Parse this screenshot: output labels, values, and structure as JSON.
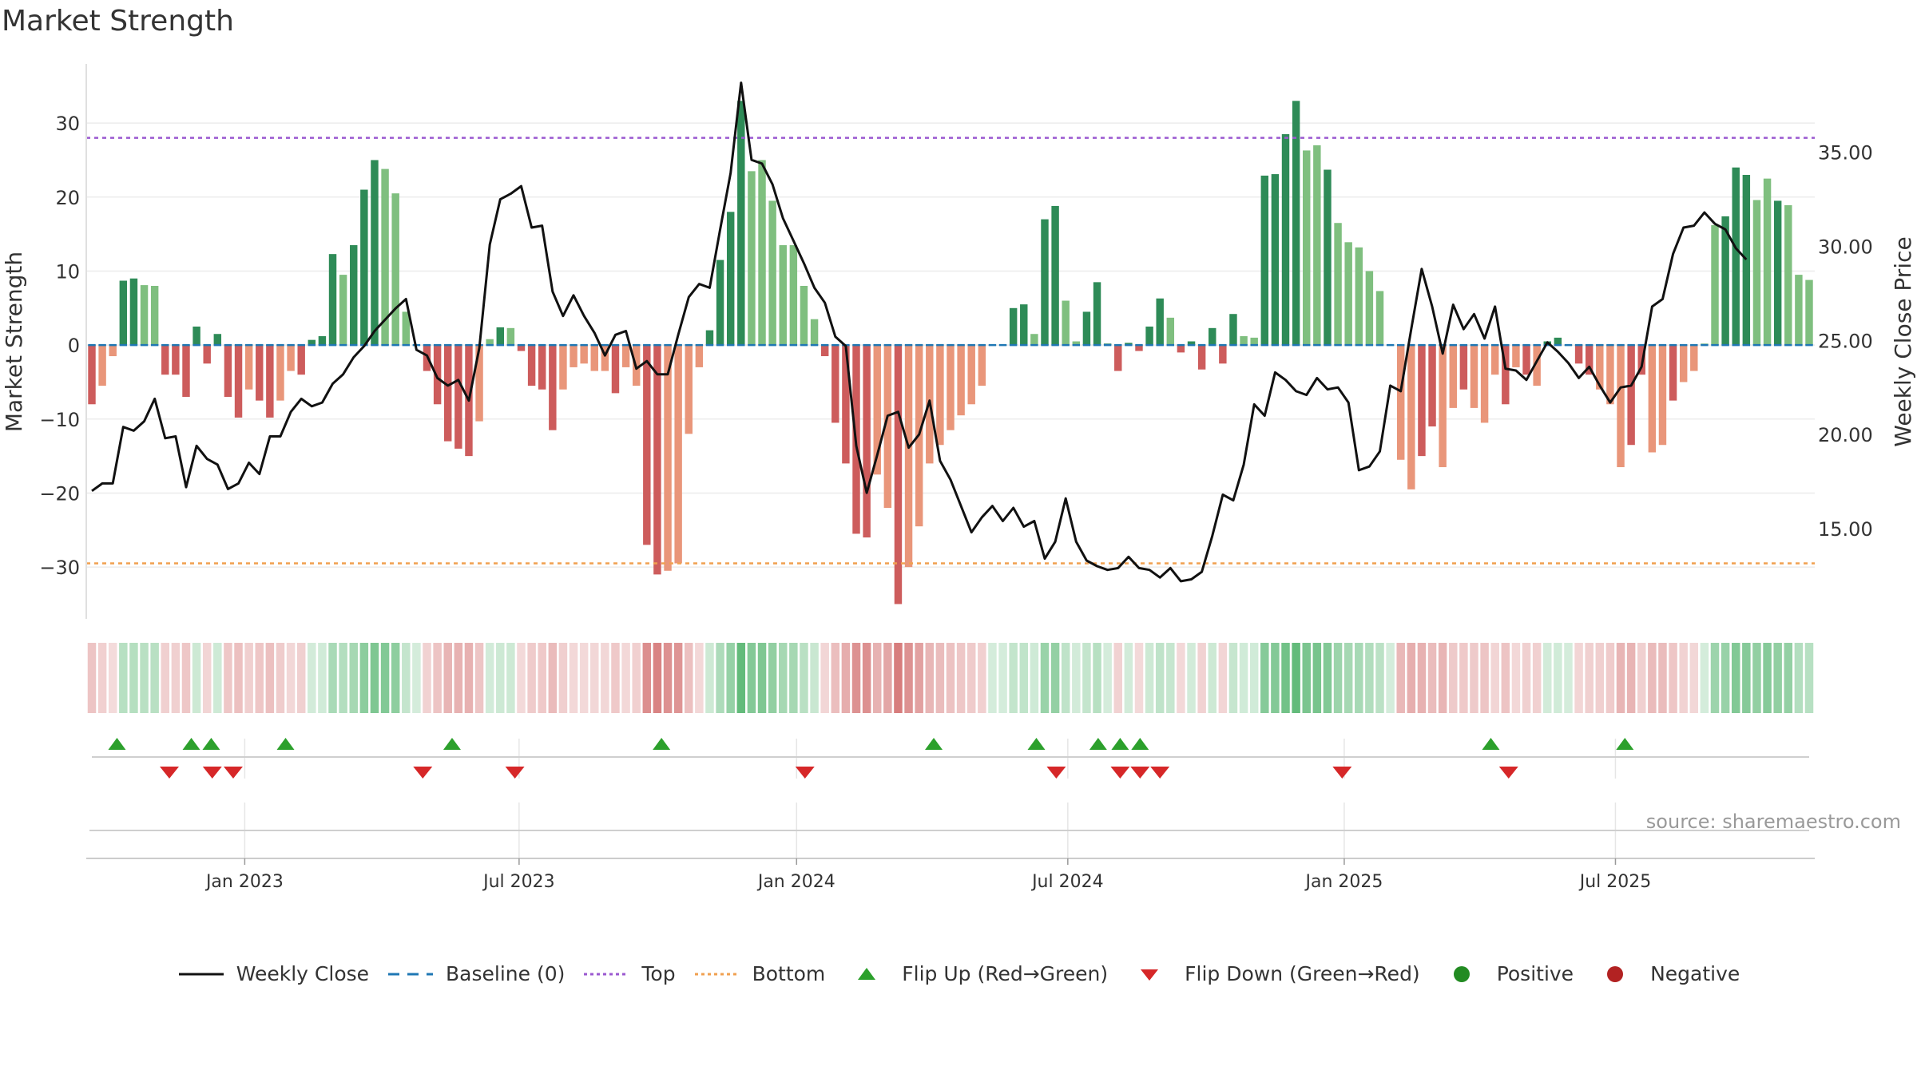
{
  "title": "Market Strength",
  "source": "source: sharemaestro.com",
  "colors": {
    "strong_green": "#2e8b57",
    "light_green": "#7fbf7f",
    "strong_red": "#cd5c5c",
    "light_red": "#e9967a",
    "top_line": "#9b59d0",
    "bottom_line": "#f0a050",
    "baseline": "#1f77b4",
    "flip_up": "#2ca02c",
    "flip_down": "#d62728",
    "positive": "#228b22",
    "negative": "#b22222"
  },
  "legend": [
    {
      "label": "Weekly Close",
      "symbol": "line"
    },
    {
      "label": "Baseline (0)",
      "symbol": "dash"
    },
    {
      "label": "Top",
      "symbol": "dot-purple"
    },
    {
      "label": "Bottom",
      "symbol": "dot-orange"
    },
    {
      "label": "Flip Up (Red→Green)",
      "symbol": "tri-up"
    },
    {
      "label": "Flip Down (Green→Red)",
      "symbol": "tri-down"
    },
    {
      "label": "Positive",
      "symbol": "circle-green"
    },
    {
      "label": "Negative",
      "symbol": "circle-red"
    }
  ],
  "chart_data": {
    "type": "bar",
    "y_left_label": "Market Strength",
    "y_right_label": "Weekly Close Price",
    "y_left_ticks": [
      "30",
      "20",
      "10",
      "0",
      "−10",
      "−20",
      "−30"
    ],
    "y_left_tick_values": [
      30,
      20,
      10,
      0,
      -10,
      -20,
      -30
    ],
    "y_right_ticks": [
      "35.00",
      "30.00",
      "25.00",
      "20.00",
      "15.00"
    ],
    "y_right_tick_values": [
      35,
      30,
      25,
      20,
      15
    ],
    "ylim_left": [
      -37,
      38
    ],
    "ylim_right": [
      10.2,
      39.7
    ],
    "x_ticks": [
      "Jan 2023",
      "Jul 2023",
      "Jan 2024",
      "Jul 2024",
      "Jan 2025",
      "Jul 2025"
    ],
    "x_tick_weeks": [
      14.6,
      40.8,
      67.3,
      93.2,
      119.6,
      145.5
    ],
    "top_threshold": 28,
    "bottom_threshold": -29.5,
    "baseline": 0,
    "strength": [
      -8,
      -5.5,
      -1.5,
      8.7,
      9,
      8.1,
      8,
      -4,
      -4,
      -7,
      2.5,
      -2.5,
      1.5,
      -7,
      -9.8,
      -6,
      -7.5,
      -9.8,
      -7.5,
      -3.5,
      -4,
      0.7,
      1.2,
      12.3,
      9.5,
      13.5,
      21,
      25,
      23.8,
      20.5,
      4.5,
      0,
      -3.5,
      -8,
      -13,
      -14,
      -15,
      -10.3,
      0.8,
      2.4,
      2.3,
      -0.8,
      -5.5,
      -6,
      -11.5,
      -6,
      -3,
      -2.5,
      -3.5,
      -3.5,
      -6.5,
      -3,
      -5.5,
      -27,
      -31,
      -30.5,
      -29.5,
      -12,
      -3,
      2,
      11.5,
      18,
      33,
      23.5,
      25,
      19.5,
      13.5,
      13.5,
      8,
      3.5,
      -1.5,
      -10.5,
      -16,
      -25.5,
      -26,
      -17.5,
      -22,
      -35,
      -30,
      -24.5,
      -16,
      -13.5,
      -11.5,
      -9.5,
      -8,
      -5.5,
      0,
      0,
      5,
      5.5,
      1.5,
      17,
      18.8,
      6,
      0.5,
      4.5,
      8.5,
      0.2,
      -3.5,
      0.3,
      -0.8,
      2.5,
      6.3,
      3.7,
      -1,
      0.5,
      -3.3,
      2.3,
      -2.5,
      4.2,
      1.2,
      1,
      22.9,
      23.1,
      28.5,
      33,
      26.3,
      27,
      23.7,
      16.5,
      13.9,
      13.2,
      10,
      7.3,
      0,
      -15.5,
      -19.5,
      -15,
      -11,
      -16.5,
      -8.5,
      -6,
      -8.5,
      -10.5,
      -4,
      -8,
      -3,
      -4,
      -5.5,
      0.5,
      1,
      0,
      -2.5,
      -4,
      -6,
      -8,
      -16.5,
      -13.5,
      -4,
      -14.5,
      -13.5,
      -7.5,
      -5,
      -3.5,
      0.2,
      16.2,
      17.4,
      24,
      23,
      19.6,
      22.5,
      19.5,
      18.9,
      9.5,
      8.8
    ],
    "strength_shade": [
      "s",
      "l",
      "l",
      "s",
      "s",
      "l",
      "l",
      "s",
      "s",
      "s",
      "s",
      "s",
      "s",
      "s",
      "s",
      "l",
      "s",
      "s",
      "l",
      "l",
      "s",
      "s",
      "s",
      "s",
      "l",
      "s",
      "s",
      "s",
      "l",
      "l",
      "l",
      "s",
      "s",
      "s",
      "s",
      "s",
      "s",
      "l",
      "l",
      "s",
      "l",
      "s",
      "s",
      "s",
      "s",
      "l",
      "l",
      "l",
      "l",
      "l",
      "s",
      "l",
      "l",
      "s",
      "s",
      "l",
      "l",
      "l",
      "l",
      "s",
      "s",
      "s",
      "s",
      "l",
      "l",
      "l",
      "l",
      "l",
      "l",
      "l",
      "s",
      "s",
      "s",
      "s",
      "s",
      "l",
      "l",
      "s",
      "l",
      "l",
      "l",
      "l",
      "l",
      "l",
      "l",
      "l",
      "s",
      "s",
      "s",
      "s",
      "l",
      "s",
      "s",
      "l",
      "l",
      "s",
      "s",
      "s",
      "s",
      "s",
      "s",
      "s",
      "s",
      "l",
      "s",
      "s",
      "s",
      "s",
      "s",
      "s",
      "l",
      "l",
      "s",
      "s",
      "s",
      "s",
      "l",
      "l",
      "s",
      "l",
      "l",
      "l",
      "l",
      "l",
      "l",
      "l",
      "l",
      "s",
      "s",
      "l",
      "l",
      "s",
      "l",
      "l",
      "l",
      "s",
      "l",
      "s",
      "l",
      "s",
      "s",
      "s",
      "s",
      "s",
      "l",
      "l",
      "l",
      "s",
      "s",
      "l",
      "l",
      "s",
      "l",
      "l",
      "l",
      "l",
      "s",
      "s",
      "s",
      "l",
      "l",
      "s",
      "l",
      "l",
      "l",
      "l",
      "l"
    ],
    "close": [
      17,
      17.4,
      17.4,
      20.4,
      20.2,
      20.7,
      21.9,
      19.8,
      19.9,
      17.2,
      19.4,
      18.7,
      18.4,
      17.1,
      17.4,
      18.5,
      17.9,
      19.9,
      19.9,
      21.2,
      21.9,
      21.5,
      21.7,
      22.7,
      23.2,
      24.1,
      24.7,
      25.5,
      26.1,
      26.7,
      27.2,
      24.5,
      24.2,
      23,
      22.6,
      22.9,
      21.8,
      24.6,
      30.1,
      32.5,
      32.8,
      33.2,
      31,
      31.1,
      27.6,
      26.3,
      27.4,
      26.3,
      25.4,
      24.2,
      25.3,
      25.5,
      23.5,
      23.9,
      23.2,
      23.2,
      25.3,
      27.3,
      28,
      27.8,
      30.9,
      33.9,
      38.7,
      34.6,
      34.4,
      33.3,
      31.5,
      30.3,
      29.1,
      27.8,
      27,
      25.2,
      24.7,
      19.4,
      16.9,
      18.9,
      21,
      21.2,
      19.3,
      20,
      21.8,
      18.6,
      17.6,
      16.2,
      14.8,
      15.6,
      16.2,
      15.4,
      16.1,
      15.1,
      15.4,
      13.4,
      14.3,
      16.6,
      14.3,
      13.3,
      13,
      12.8,
      12.9,
      13.5,
      12.9,
      12.8,
      12.4,
      12.9,
      12.2,
      12.3,
      12.7,
      14.6,
      16.8,
      16.5,
      18.4,
      21.6,
      21,
      23.3,
      22.9,
      22.3,
      22.1,
      23,
      22.4,
      22.5,
      21.7,
      18.1,
      18.3,
      19.1,
      22.6,
      22.3,
      25.6,
      28.8,
      26.8,
      24.3,
      26.9,
      25.6,
      26.4,
      25.1,
      26.8,
      23.5,
      23.4,
      22.9,
      23.9,
      24.9,
      24.4,
      23.8,
      23,
      23.6,
      22.6,
      21.7,
      22.5,
      22.6,
      23.6,
      26.8,
      27.2,
      29.6,
      31,
      31.1,
      31.8,
      31.2,
      30.9,
      29.9,
      29.3
    ]
  },
  "signals": {
    "flip_up_weeks": [
      2.4,
      9.5,
      11.4,
      18.5,
      34.4,
      54.4,
      80.4,
      90.2,
      96.1,
      98.2,
      100.1,
      133.6,
      146.4
    ],
    "flip_down_weeks": [
      7.4,
      11.5,
      13.5,
      31.6,
      40.4,
      68.1,
      92.1,
      98.2,
      100.1,
      102.0,
      119.4,
      135.3
    ],
    "regime": [
      "s",
      "l",
      "l",
      "s",
      "s",
      "l",
      "l",
      "s",
      "s",
      "s",
      "s",
      "s",
      "s",
      "s",
      "s",
      "l",
      "s",
      "s",
      "l",
      "l",
      "s",
      "s",
      "s",
      "s",
      "l",
      "s",
      "s",
      "s",
      "l",
      "l",
      "l",
      "s",
      "s",
      "s",
      "s",
      "s",
      "s",
      "l",
      "l",
      "s",
      "l",
      "s",
      "s",
      "s",
      "s",
      "l",
      "l",
      "l",
      "l",
      "l",
      "s",
      "l",
      "l",
      "s",
      "s",
      "l",
      "l",
      "l",
      "l",
      "s",
      "s",
      "s",
      "s",
      "l",
      "l",
      "l",
      "l",
      "l",
      "l",
      "l",
      "s",
      "s",
      "s",
      "s",
      "s",
      "l",
      "l",
      "s",
      "l",
      "l",
      "l",
      "l",
      "l",
      "l",
      "l",
      "l",
      "s",
      "s",
      "s",
      "s",
      "l",
      "s",
      "s",
      "l",
      "l",
      "s",
      "s",
      "s",
      "s",
      "s",
      "s",
      "s",
      "s",
      "l",
      "s",
      "s",
      "s",
      "s",
      "s",
      "s",
      "l",
      "l",
      "s",
      "s",
      "s",
      "s",
      "l",
      "l",
      "s",
      "l",
      "l",
      "l",
      "l",
      "l",
      "l",
      "l",
      "l",
      "s",
      "s",
      "l",
      "l",
      "s",
      "l",
      "l",
      "l",
      "s",
      "l",
      "s",
      "l",
      "s",
      "s",
      "s",
      "s",
      "s",
      "l",
      "l",
      "l",
      "s",
      "s",
      "l",
      "l",
      "s",
      "l",
      "l",
      "l",
      "l",
      "s",
      "s",
      "s",
      "l",
      "l",
      "s",
      "l",
      "l",
      "l",
      "l",
      "l"
    ]
  }
}
